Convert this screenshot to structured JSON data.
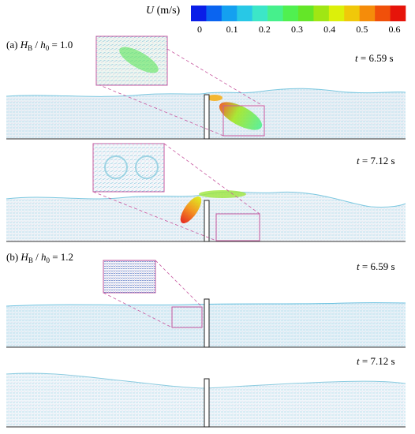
{
  "colorbar": {
    "variable": "U",
    "unit": "(m/s)",
    "ticks": [
      "0",
      "0.1",
      "0.2",
      "0.3",
      "0.4",
      "0.5",
      "0.6"
    ],
    "colors": [
      "#0a1ee8",
      "#0a64f0",
      "#14a0f0",
      "#28c8e6",
      "#3ce6c8",
      "#46f08c",
      "#50f050",
      "#64e628",
      "#a0e614",
      "#dcf00a",
      "#f0c80a",
      "#f58c0a",
      "#f0500a",
      "#e6140a"
    ]
  },
  "cases": [
    {
      "label_prefix": "(a)",
      "symbol_num": "H",
      "symbol_num_sub": "B",
      "symbol_den": "h",
      "symbol_den_sub": "0",
      "ratio": "= 1.0",
      "panels": [
        {
          "time_symbol": "t",
          "time_value": "= 6.59 s"
        },
        {
          "time_symbol": "t",
          "time_value": "= 7.12 s"
        }
      ]
    },
    {
      "label_prefix": "(b)",
      "symbol_num": "H",
      "symbol_num_sub": "B",
      "symbol_den": "h",
      "symbol_den_sub": "0",
      "ratio": "= 1.2",
      "panels": [
        {
          "time_symbol": "t",
          "time_value": "= 6.59 s"
        },
        {
          "time_symbol": "t",
          "time_value": "= 7.12 s"
        }
      ]
    }
  ]
}
